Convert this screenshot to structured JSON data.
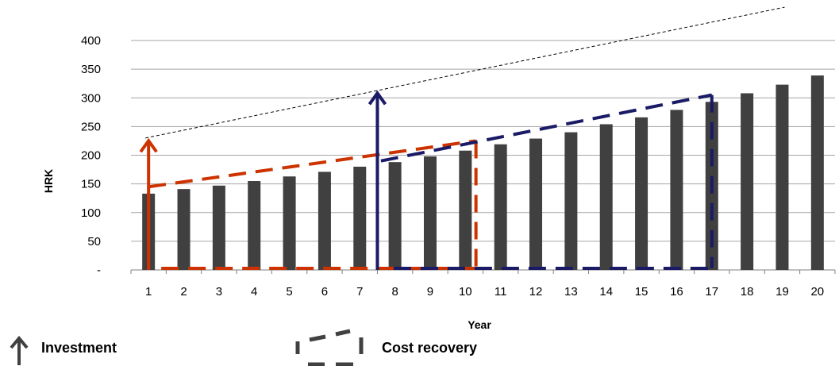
{
  "chart_data": {
    "type": "bar",
    "ylabel": "HRK",
    "xlabel": "Year",
    "categories": [
      "1",
      "2",
      "3",
      "4",
      "5",
      "6",
      "7",
      "8",
      "9",
      "10",
      "11",
      "12",
      "13",
      "14",
      "15",
      "16",
      "17",
      "18",
      "19",
      "20"
    ],
    "values": [
      133,
      141,
      147,
      155,
      163,
      171,
      180,
      188,
      198,
      208,
      219,
      229,
      240,
      254,
      266,
      279,
      293,
      308,
      323,
      339
    ],
    "ylim": [
      0,
      400
    ],
    "yticks": [
      0,
      50,
      100,
      150,
      200,
      250,
      300,
      350,
      400
    ],
    "ytick_labels": [
      "-",
      "50",
      "100",
      "150",
      "200",
      "250",
      "300",
      "350",
      "400"
    ],
    "grid": true,
    "bar_color": "#404040",
    "overlays": {
      "trend_line": {
        "x": [
          1,
          19
        ],
        "y": [
          230,
          458
        ],
        "color": "#000000"
      },
      "first_cost_recovery": {
        "color": "#cc3300",
        "investment_year": 1,
        "investment_top": 228,
        "start": [
          1,
          145
        ],
        "end": [
          10.3,
          225
        ],
        "bottom": 0
      },
      "second_cost_recovery": {
        "color": "#1a1a66",
        "investment_year": 7.5,
        "investment_top": 311,
        "start": [
          7.6,
          190
        ],
        "end": [
          17,
          305
        ],
        "bottom": 0
      }
    }
  },
  "legend": {
    "investment_label": "Investment",
    "cost_recovery_label": "Cost recovery",
    "icon_color": "#404040"
  }
}
